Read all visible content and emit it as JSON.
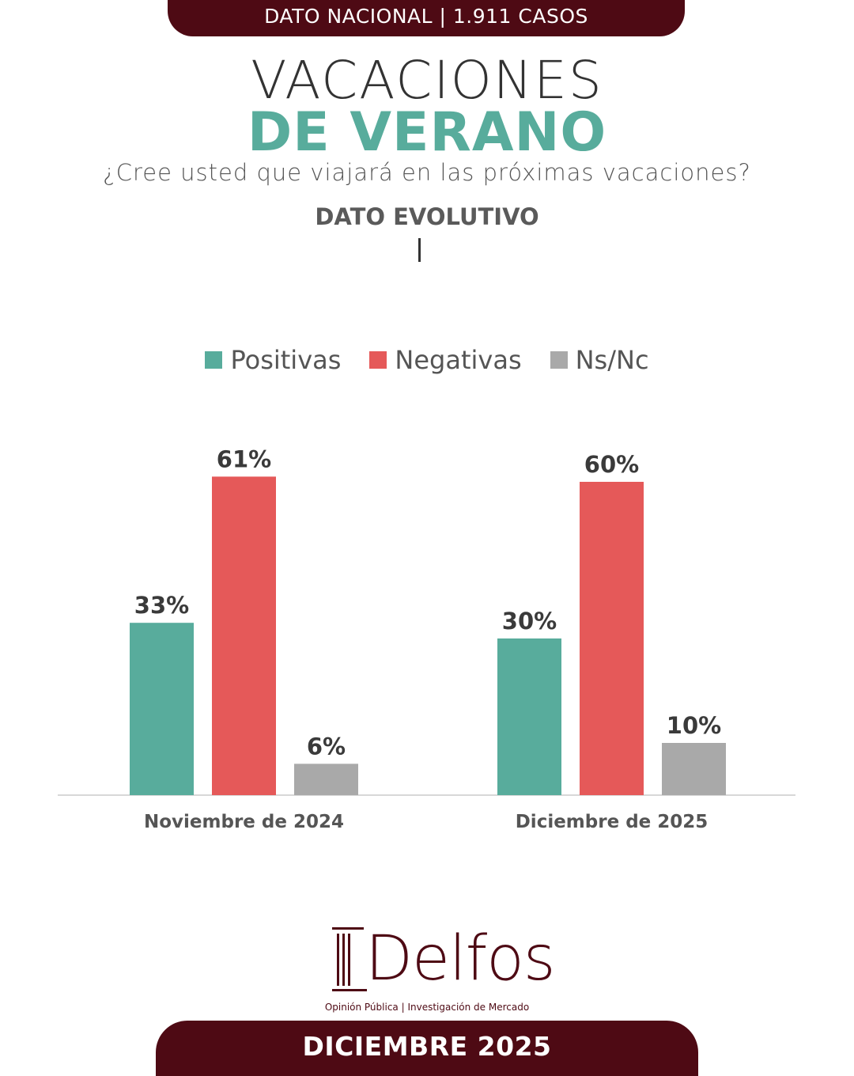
{
  "header": {
    "banner": "DATO NACIONAL | 1.911 CASOS",
    "title_line1": "VACACIONES",
    "title_line2": "DE VERANO",
    "question": "¿Cree usted que viajará en las próximas vacaciones?",
    "section": "DATO EVOLUTIVO"
  },
  "colors": {
    "positivas": "#58ac9c",
    "negativas": "#e55959",
    "nsnc": "#a9a9a9",
    "brand": "#4e0a14"
  },
  "chart_data": {
    "type": "bar",
    "categories": [
      "Noviembre de 2024",
      "Diciembre de 2025"
    ],
    "series": [
      {
        "name": "Positivas",
        "values": [
          33,
          30
        ],
        "labels": [
          "33%",
          "30%"
        ]
      },
      {
        "name": "Negativas",
        "values": [
          61,
          60
        ],
        "labels": [
          "61%",
          "60%"
        ]
      },
      {
        "name": "Ns/Nc",
        "values": [
          6,
          10
        ],
        "labels": [
          "6%",
          "10%"
        ]
      }
    ],
    "legend_position": "top-center",
    "grid": false
  },
  "footer": {
    "logo_text": "Delfos",
    "logo_sub": "Opinión Pública | Investigación de Mercado",
    "date": "DICIEMBRE 2025"
  }
}
